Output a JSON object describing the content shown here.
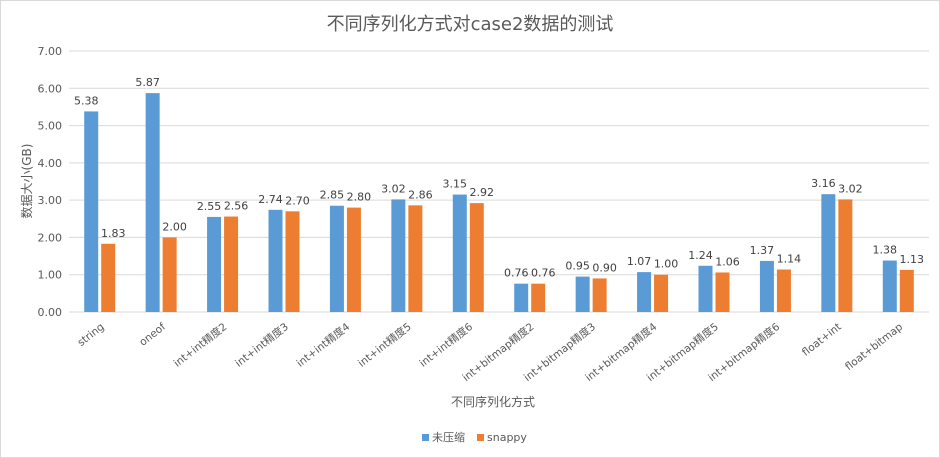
{
  "chart_data": {
    "type": "bar",
    "title": "不同序列化方式对case2数据的测试",
    "xlabel": "不同序列化方式",
    "ylabel": "数据大小(GB)",
    "ylim": [
      0,
      7
    ],
    "yticks": [
      "0.00",
      "1.00",
      "2.00",
      "3.00",
      "4.00",
      "5.00",
      "6.00",
      "7.00"
    ],
    "grid": true,
    "legend_position": "bottom",
    "categories": [
      "string",
      "oneof",
      "int+int精度2",
      "int+int精度3",
      "int+int精度4",
      "int+int精度5",
      "int+int精度6",
      "int+bitmap精度2",
      "int+bitmap精度3",
      "int+bitmap精度4",
      "int+bitmap精度5",
      "int+bitmap精度6",
      "float+int",
      "float+bitmap"
    ],
    "series": [
      {
        "name": "未压缩",
        "color": "#5b9bd5",
        "values": [
          5.38,
          5.87,
          2.55,
          2.74,
          2.85,
          3.02,
          3.15,
          0.76,
          0.95,
          1.07,
          1.24,
          1.37,
          3.16,
          1.38
        ],
        "labels": [
          "5.38",
          "5.87",
          "2.55",
          "2.74",
          "2.85",
          "3.02",
          "3.15",
          "0.76",
          "0.95",
          "1.07",
          "1.24",
          "1.37",
          "3.16",
          "1.38"
        ]
      },
      {
        "name": "snappy",
        "color": "#ed7d31",
        "values": [
          1.83,
          2.0,
          2.56,
          2.7,
          2.8,
          2.86,
          2.92,
          0.76,
          0.9,
          1.0,
          1.06,
          1.14,
          3.02,
          1.13
        ],
        "labels": [
          "1.83",
          "2.00",
          "2.56",
          "2.70",
          "2.80",
          "2.86",
          "2.92",
          "0.76",
          "0.90",
          "1.00",
          "1.06",
          "1.14",
          "3.02",
          "1.13"
        ]
      }
    ]
  }
}
